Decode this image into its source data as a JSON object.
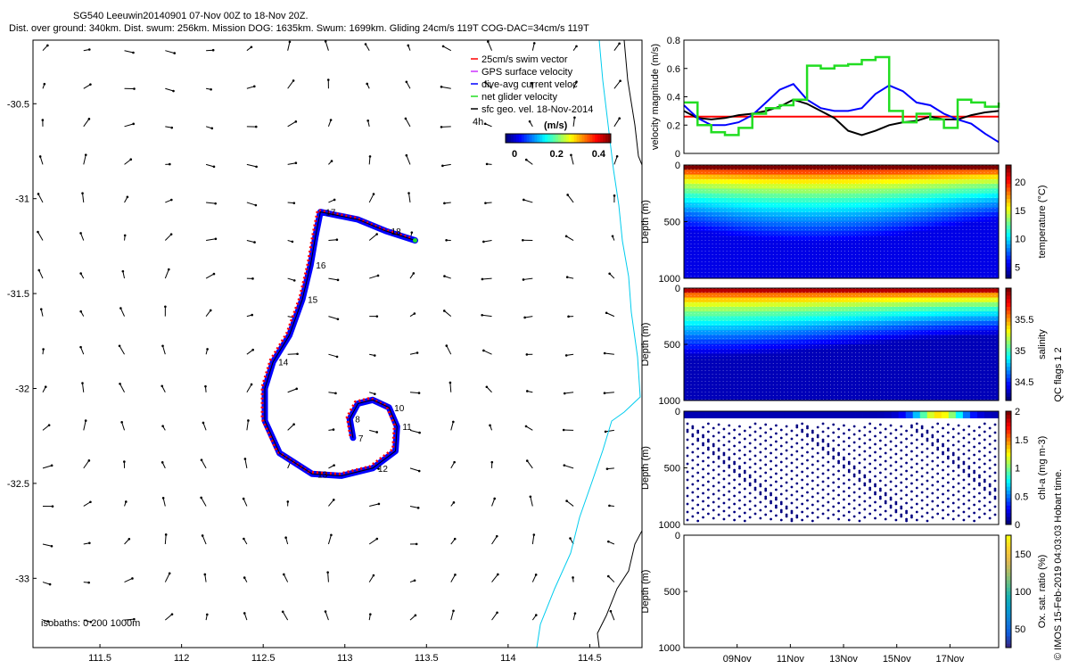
{
  "header": {
    "title": "SG540 Leeuwin20140901 07-Nov 00Z to 18-Nov 20Z.",
    "stats": "Dist. over ground: 340km. Dist. swum: 256km. Mission DOG: 1635km. Swum: 1699km. Gliding 24cm/s 119T COG-DAC=34cm/s 119T"
  },
  "map": {
    "legend": [
      {
        "label": "25cm/s swim vector",
        "color": "#ff0000"
      },
      {
        "label": "GPS surface velocity",
        "color": "#cc33ff"
      },
      {
        "label": "dive-avg current veloc",
        "color": "#0000ff"
      },
      {
        "label": "net glider velocity",
        "color": "#22dd22"
      },
      {
        "label": "sfc geo. vel. 18-Nov-2014",
        "color": "#000000"
      }
    ],
    "interval_label": "4h",
    "colorbar": {
      "unit": "(m/s)",
      "ticks": [
        "0",
        "0.2",
        "0.4"
      ]
    },
    "isobaths": "isobaths: 0   200  1000m",
    "x_ticks": [
      "111.5",
      "112",
      "112.5",
      "113",
      "113.5",
      "114",
      "114.5"
    ],
    "y_ticks": [
      "-30.5",
      "-31",
      "-31.5",
      "-32",
      "-32.5",
      "-33"
    ],
    "day_labels": [
      "7",
      "8",
      "10",
      "11",
      "12",
      "13",
      "14",
      "15",
      "16",
      "17",
      "18"
    ],
    "track": [
      {
        "lon": 113.05,
        "lat": -32.26
      },
      {
        "lon": 113.03,
        "lat": -32.16
      },
      {
        "lon": 113.08,
        "lat": -32.08
      },
      {
        "lon": 113.17,
        "lat": -32.06
      },
      {
        "lon": 113.27,
        "lat": -32.1
      },
      {
        "lon": 113.32,
        "lat": -32.2
      },
      {
        "lon": 113.31,
        "lat": -32.33
      },
      {
        "lon": 113.17,
        "lat": -32.42
      },
      {
        "lon": 112.98,
        "lat": -32.46
      },
      {
        "lon": 112.8,
        "lat": -32.45
      },
      {
        "lon": 112.6,
        "lat": -32.34
      },
      {
        "lon": 112.51,
        "lat": -32.17
      },
      {
        "lon": 112.51,
        "lat": -32.0
      },
      {
        "lon": 112.56,
        "lat": -31.86
      },
      {
        "lon": 112.66,
        "lat": -31.72
      },
      {
        "lon": 112.74,
        "lat": -31.53
      },
      {
        "lon": 112.79,
        "lat": -31.35
      },
      {
        "lon": 112.82,
        "lat": -31.2
      },
      {
        "lon": 112.85,
        "lat": -31.07
      },
      {
        "lon": 113.08,
        "lat": -31.11
      },
      {
        "lon": 113.25,
        "lat": -31.17
      },
      {
        "lon": 113.43,
        "lat": -31.22
      }
    ]
  },
  "chart_data": [
    {
      "type": "line",
      "ylabel": "velocity magnitude (m/s)",
      "ylim": [
        0,
        0.8
      ],
      "yticks": [
        "0",
        "0.2",
        "0.4",
        "0.6",
        "0.8"
      ],
      "series": [
        {
          "color": "#ff0000",
          "y": [
            0.26,
            0.26
          ]
        },
        {
          "color": "#000000",
          "y": [
            0.3,
            0.25,
            0.24,
            0.25,
            0.27,
            0.28,
            0.3,
            0.33,
            0.38,
            0.35,
            0.3,
            0.25,
            0.16,
            0.13,
            0.16,
            0.2,
            0.22,
            0.23,
            0.26,
            0.24,
            0.24,
            0.27,
            0.29,
            0.3
          ]
        },
        {
          "color": "#0000ff",
          "y": [
            0.34,
            0.25,
            0.2,
            0.2,
            0.22,
            0.27,
            0.36,
            0.45,
            0.49,
            0.38,
            0.32,
            0.3,
            0.3,
            0.32,
            0.42,
            0.48,
            0.44,
            0.36,
            0.34,
            0.28,
            0.24,
            0.21,
            0.14,
            0.08
          ]
        },
        {
          "color": "#22dd22",
          "y": [
            0.36,
            0.2,
            0.15,
            0.13,
            0.18,
            0.28,
            0.32,
            0.34,
            0.38,
            0.62,
            0.6,
            0.62,
            0.63,
            0.66,
            0.68,
            0.3,
            0.22,
            0.28,
            0.24,
            0.18,
            0.38,
            0.36,
            0.33,
            0.36
          ]
        }
      ]
    },
    {
      "type": "heatmap",
      "ylabel": "Depth (m)",
      "yticks": [
        "0",
        "500",
        "1000"
      ],
      "cbar_label": "temperature (°C)",
      "cbar_ticks": [
        "20",
        "15",
        "10",
        "5"
      ],
      "clim": [
        3,
        23
      ]
    },
    {
      "type": "heatmap",
      "ylabel": "Depth (m)",
      "yticks": [
        "0",
        "500",
        "1000"
      ],
      "cbar_label": "salinity",
      "cbar_ticks": [
        "35.5",
        "35",
        "34.5"
      ],
      "clim": [
        34.2,
        36
      ]
    },
    {
      "type": "heatmap",
      "ylabel": "Depth (m)",
      "yticks": [
        "0",
        "500",
        "1000"
      ],
      "cbar_label": "chl-a (mg m-3)",
      "cbar_ticks": [
        "2",
        "1.5",
        "1",
        "0.5",
        "0"
      ],
      "clim": [
        0,
        2
      ]
    },
    {
      "type": "heatmap",
      "ylabel": "Depth (m)",
      "yticks": [
        "0",
        "500",
        "1000"
      ],
      "cbar_label": "Ox. sat. ratio (%)",
      "cbar_ticks": [
        "150",
        "100",
        "50"
      ],
      "clim": [
        25,
        175
      ],
      "x_ticks": [
        "09Nov",
        "11Nov",
        "13Nov",
        "15Nov",
        "17Nov"
      ]
    }
  ],
  "footer": {
    "qc_label": "QC flags 1  2",
    "credit": "© IMOS 15-Feb-2019 04:03:03 Hobart time."
  }
}
